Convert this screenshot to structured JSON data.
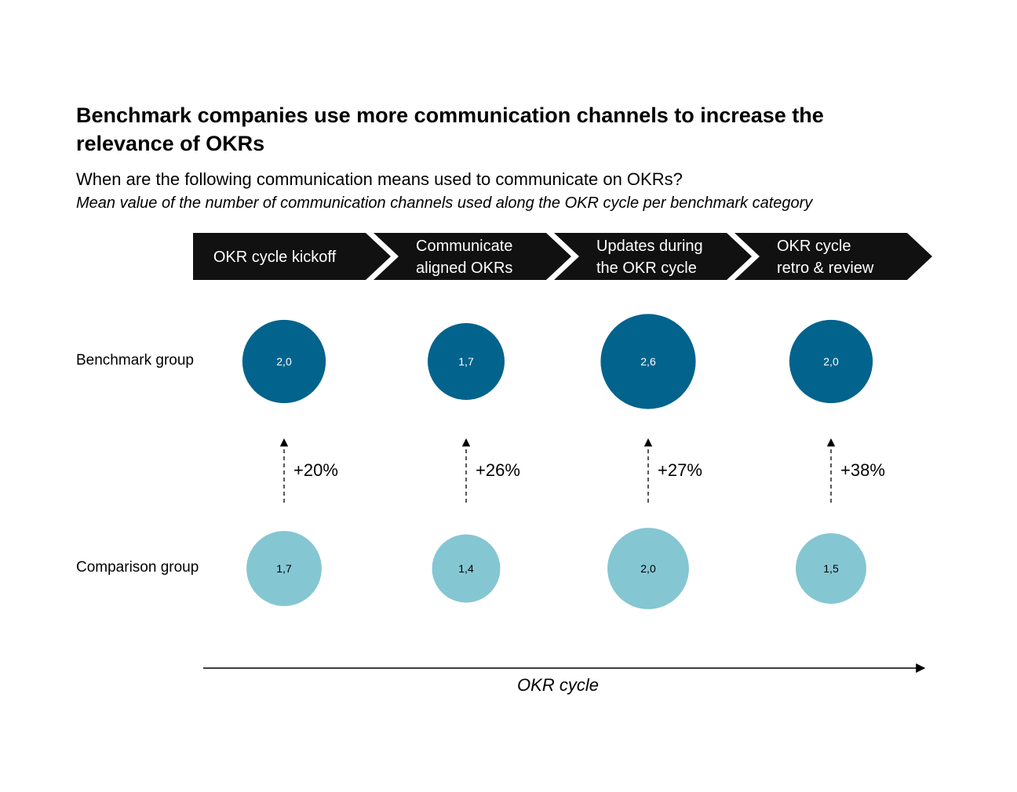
{
  "chart_data": {
    "type": "bubble",
    "title": "Benchmark companies use more communication channels to increase the relevance of OKRs",
    "subtitle": "When are the following communication means used to communicate on OKRs?",
    "note": "Mean value of the number of communication channels used along the OKR cycle per benchmark category",
    "stages": [
      {
        "lines": [
          "OKR cycle kickoff"
        ]
      },
      {
        "lines": [
          "Communicate",
          "aligned OKRs"
        ]
      },
      {
        "lines": [
          "Updates during",
          "the OKR cycle"
        ]
      },
      {
        "lines": [
          "OKR cycle",
          "retro & review"
        ]
      }
    ],
    "series": [
      {
        "name": "Benchmark group",
        "values": [
          2.0,
          1.7,
          2.6,
          2.0
        ],
        "labels": [
          "2,0",
          "1,7",
          "2,6",
          "2,0"
        ]
      },
      {
        "name": "Comparison group",
        "values": [
          1.7,
          1.4,
          2.0,
          1.5
        ],
        "labels": [
          "1,7",
          "1,4",
          "2,0",
          "1,5"
        ]
      }
    ],
    "differences": [
      "+20%",
      "+26%",
      "+27%",
      "+38%"
    ],
    "xlabel": "OKR cycle",
    "colors": {
      "benchmark": "#02638d",
      "comparison": "#85c6d3",
      "chevron": "#111111"
    }
  }
}
